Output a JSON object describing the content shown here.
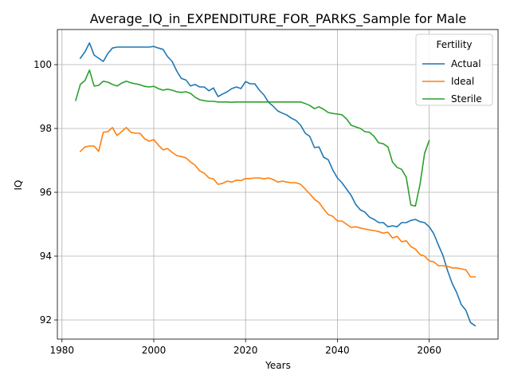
{
  "chart_data": {
    "type": "line",
    "title": "Average_IQ_in_EXPENDITURE_FOR_PARKS_Sample for Male",
    "xlabel": "Years",
    "ylabel": "IQ",
    "xlim": [
      1979,
      2075
    ],
    "ylim": [
      91.4,
      101.1
    ],
    "xticks": [
      1980,
      2000,
      2020,
      2040,
      2060
    ],
    "yticks": [
      92,
      94,
      96,
      98,
      100
    ],
    "grid": true,
    "legend": {
      "title": "Fertility",
      "placement": "top-right"
    },
    "series": [
      {
        "name": "Actual",
        "color": "#1f77b4",
        "x": [
          1984,
          1985,
          1986,
          1987,
          1988,
          1989,
          1990,
          1991,
          1992,
          1993,
          1994,
          1995,
          1996,
          1997,
          1998,
          1999,
          2000,
          2001,
          2002,
          2003,
          2004,
          2005,
          2006,
          2007,
          2008,
          2009,
          2010,
          2011,
          2012,
          2013,
          2014,
          2015,
          2016,
          2017,
          2018,
          2019,
          2020,
          2021,
          2022,
          2023,
          2024,
          2025,
          2026,
          2027,
          2028,
          2029,
          2030,
          2031,
          2032,
          2033,
          2034,
          2035,
          2036,
          2037,
          2038,
          2039,
          2040,
          2041,
          2042,
          2043,
          2044,
          2045,
          2046,
          2047,
          2048,
          2049,
          2050,
          2051,
          2052,
          2053,
          2054,
          2055,
          2056,
          2057,
          2058,
          2059,
          2060,
          2061,
          2062,
          2063,
          2064,
          2065,
          2066,
          2067,
          2068,
          2069,
          2070
        ],
        "y": [
          100.2,
          100.4,
          100.68,
          100.3,
          100.2,
          100.1,
          100.35,
          100.52,
          100.55,
          100.55,
          100.55,
          100.55,
          100.55,
          100.55,
          100.55,
          100.55,
          100.57,
          100.52,
          100.48,
          100.25,
          100.1,
          99.8,
          99.57,
          99.52,
          99.33,
          99.38,
          99.3,
          99.3,
          99.18,
          99.27,
          99.0,
          99.08,
          99.15,
          99.25,
          99.3,
          99.25,
          99.47,
          99.4,
          99.4,
          99.2,
          99.05,
          98.82,
          98.7,
          98.55,
          98.48,
          98.42,
          98.32,
          98.25,
          98.1,
          97.85,
          97.75,
          97.4,
          97.42,
          97.1,
          97.02,
          96.7,
          96.45,
          96.3,
          96.1,
          95.9,
          95.62,
          95.45,
          95.38,
          95.22,
          95.15,
          95.05,
          95.05,
          94.92,
          94.95,
          94.92,
          95.05,
          95.05,
          95.12,
          95.15,
          95.08,
          95.05,
          94.92,
          94.7,
          94.35,
          94.02,
          93.55,
          93.15,
          92.85,
          92.48,
          92.3,
          91.92,
          91.82
        ]
      },
      {
        "name": "Ideal",
        "color": "#ff7f0e",
        "x": [
          1984,
          1985,
          1986,
          1987,
          1988,
          1989,
          1990,
          1991,
          1992,
          1993,
          1994,
          1995,
          1996,
          1997,
          1998,
          1999,
          2000,
          2001,
          2002,
          2003,
          2004,
          2005,
          2006,
          2007,
          2008,
          2009,
          2010,
          2011,
          2012,
          2013,
          2014,
          2015,
          2016,
          2017,
          2018,
          2019,
          2020,
          2021,
          2022,
          2023,
          2024,
          2025,
          2026,
          2027,
          2028,
          2029,
          2030,
          2031,
          2032,
          2033,
          2034,
          2035,
          2036,
          2037,
          2038,
          2039,
          2040,
          2041,
          2042,
          2043,
          2044,
          2045,
          2046,
          2047,
          2048,
          2049,
          2050,
          2051,
          2052,
          2053,
          2054,
          2055,
          2056,
          2057,
          2058,
          2059,
          2060,
          2061,
          2062,
          2063,
          2064,
          2065,
          2066,
          2067,
          2068,
          2069,
          2070
        ],
        "y": [
          97.28,
          97.42,
          97.45,
          97.45,
          97.28,
          97.88,
          97.9,
          98.03,
          97.78,
          97.9,
          98.03,
          97.88,
          97.85,
          97.85,
          97.68,
          97.6,
          97.65,
          97.48,
          97.33,
          97.37,
          97.25,
          97.15,
          97.12,
          97.08,
          96.95,
          96.85,
          96.67,
          96.6,
          96.45,
          96.42,
          96.25,
          96.28,
          96.35,
          96.32,
          96.38,
          96.37,
          96.43,
          96.43,
          96.45,
          96.45,
          96.42,
          96.45,
          96.4,
          96.32,
          96.35,
          96.32,
          96.3,
          96.3,
          96.25,
          96.1,
          95.95,
          95.78,
          95.68,
          95.48,
          95.3,
          95.25,
          95.1,
          95.1,
          95.0,
          94.9,
          94.92,
          94.88,
          94.85,
          94.82,
          94.8,
          94.77,
          94.72,
          94.75,
          94.57,
          94.62,
          94.45,
          94.48,
          94.3,
          94.22,
          94.05,
          94.0,
          93.85,
          93.82,
          93.7,
          93.7,
          93.68,
          93.63,
          93.63,
          93.6,
          93.57,
          93.35,
          93.35
        ]
      },
      {
        "name": "Sterile",
        "color": "#2ca02c",
        "x": [
          1983,
          1984,
          1985,
          1986,
          1987,
          1988,
          1989,
          1990,
          1991,
          1992,
          1993,
          1994,
          1995,
          1996,
          1997,
          1998,
          1999,
          2000,
          2001,
          2002,
          2003,
          2004,
          2005,
          2006,
          2007,
          2008,
          2009,
          2010,
          2011,
          2012,
          2013,
          2014,
          2015,
          2016,
          2017,
          2018,
          2019,
          2020,
          2021,
          2022,
          2023,
          2024,
          2025,
          2026,
          2027,
          2028,
          2029,
          2030,
          2031,
          2032,
          2033,
          2034,
          2035,
          2036,
          2037,
          2038,
          2039,
          2040,
          2041,
          2042,
          2043,
          2044,
          2045,
          2046,
          2047,
          2048,
          2049,
          2050,
          2051,
          2052,
          2053,
          2054,
          2055,
          2056,
          2057,
          2058,
          2059,
          2060
        ],
        "y": [
          98.88,
          99.38,
          99.5,
          99.83,
          99.33,
          99.35,
          99.48,
          99.45,
          99.38,
          99.33,
          99.42,
          99.48,
          99.43,
          99.4,
          99.37,
          99.32,
          99.3,
          99.32,
          99.25,
          99.2,
          99.23,
          99.2,
          99.15,
          99.13,
          99.15,
          99.1,
          98.98,
          98.9,
          98.87,
          98.85,
          98.85,
          98.83,
          98.83,
          98.83,
          98.82,
          98.83,
          98.83,
          98.83,
          98.83,
          98.83,
          98.83,
          98.83,
          98.83,
          98.83,
          98.83,
          98.83,
          98.83,
          98.83,
          98.83,
          98.83,
          98.78,
          98.72,
          98.62,
          98.68,
          98.6,
          98.5,
          98.47,
          98.45,
          98.43,
          98.3,
          98.1,
          98.05,
          98.0,
          97.9,
          97.88,
          97.75,
          97.55,
          97.52,
          97.42,
          96.95,
          96.78,
          96.72,
          96.47,
          95.6,
          95.57,
          96.25,
          97.22,
          97.62
        ]
      }
    ]
  }
}
